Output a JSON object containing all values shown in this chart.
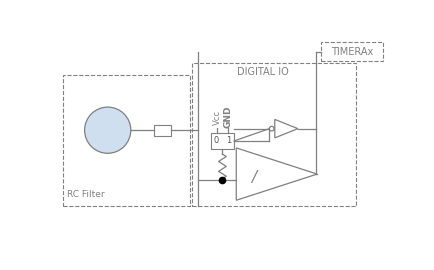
{
  "bg_color": "#ffffff",
  "line_color": "#808080",
  "text_color": "#808080",
  "fig_width": 4.34,
  "fig_height": 2.7,
  "dpi": 100,
  "rc_filter_label": "RC Filter",
  "digital_io_label": "DIGITAL IO",
  "timerax_label": "TIMERAx",
  "vcc_label": "Vcc",
  "gnd_label": "GND",
  "circle_fill": "#d0dff0",
  "sw_label_0": "0",
  "sw_label_1": "1"
}
